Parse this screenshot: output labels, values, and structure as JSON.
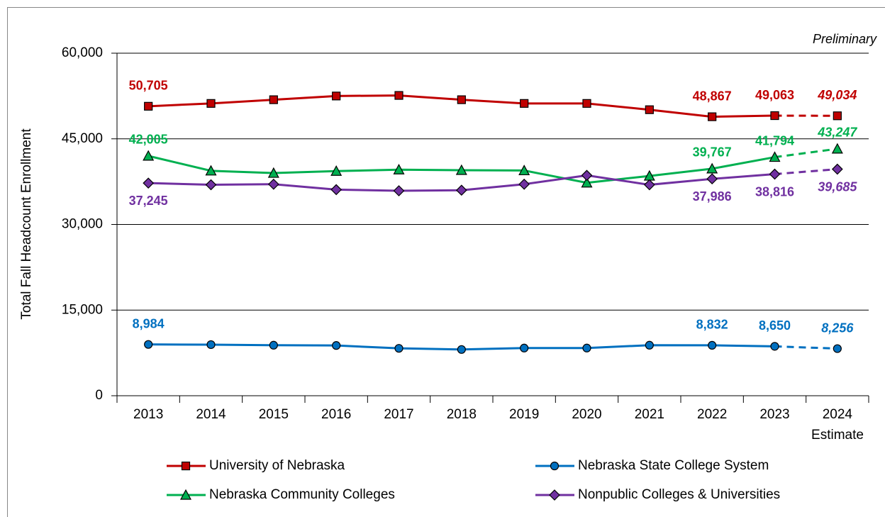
{
  "chart_data": {
    "type": "line",
    "y_axis_label": "Total Fall Headcount Enrollment",
    "annotations": [
      "Preliminary",
      "Estimate"
    ],
    "categories": [
      "2013",
      "2014",
      "2015",
      "2016",
      "2017",
      "2018",
      "2019",
      "2020",
      "2021",
      "2022",
      "2023",
      "2024"
    ],
    "dashed_last_segment": true,
    "ylim": [
      0,
      60000
    ],
    "yticks": [
      0,
      {
        "value": 15000,
        "label": "15,000"
      },
      {
        "value": 30000,
        "label": "30,000"
      },
      {
        "value": 45000,
        "label": "45,000"
      },
      {
        "value": 60000,
        "label": "60,000"
      }
    ],
    "grid": true,
    "series": [
      {
        "name": "University of Nebraska",
        "color": "#c00000",
        "marker": "square",
        "values": [
          50705,
          51200,
          51850,
          52500,
          52600,
          51850,
          51200,
          51200,
          50100,
          48867,
          49063,
          49034
        ],
        "value_labels": [
          "50,705",
          null,
          null,
          null,
          null,
          null,
          null,
          null,
          null,
          "48,867",
          "49,063",
          "49,034"
        ]
      },
      {
        "name": "Nebraska State College System",
        "color": "#0070c0",
        "marker": "circle",
        "values": [
          8984,
          8950,
          8850,
          8800,
          8300,
          8100,
          8350,
          8350,
          8850,
          8832,
          8650,
          8256
        ],
        "value_labels": [
          "8,984",
          null,
          null,
          null,
          null,
          null,
          null,
          null,
          null,
          "8,832",
          "8,650",
          "8,256"
        ]
      },
      {
        "name": "Nebraska Community Colleges",
        "color": "#00b050",
        "marker": "triangle",
        "values": [
          42005,
          39400,
          39000,
          39350,
          39600,
          39500,
          39450,
          37300,
          38500,
          39767,
          41794,
          43247
        ],
        "value_labels": [
          "42,005",
          null,
          null,
          null,
          null,
          null,
          null,
          null,
          null,
          "39,767",
          "41,794",
          "43,247"
        ]
      },
      {
        "name": "Nonpublic Colleges & Universities",
        "color": "#7030a0",
        "marker": "diamond",
        "values": [
          37245,
          36950,
          37050,
          36100,
          35900,
          36000,
          37050,
          38600,
          36950,
          37986,
          38816,
          39685
        ],
        "value_labels": [
          "37,245",
          null,
          null,
          null,
          null,
          null,
          null,
          null,
          null,
          "37,986",
          "38,816",
          "39,685"
        ]
      }
    ]
  }
}
